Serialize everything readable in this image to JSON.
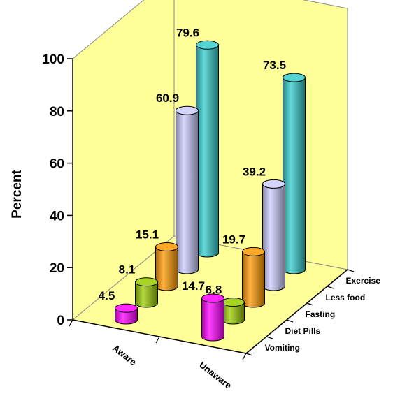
{
  "chart_data": {
    "type": "bar",
    "style": "3d-cylinder",
    "ylabel": "Percent",
    "ylim": [
      0,
      100
    ],
    "yticks": [
      0,
      20,
      40,
      60,
      80,
      100
    ],
    "categories": [
      "Aware",
      "Unaware"
    ],
    "series": [
      {
        "name": "Vomiting",
        "values": [
          4.5,
          14.7
        ],
        "color": "#ff00ff"
      },
      {
        "name": "Diet Pills",
        "values": [
          8.1,
          6.8
        ],
        "color": "#99cc00"
      },
      {
        "name": "Fasting",
        "values": [
          15.1,
          19.7
        ],
        "color": "#ff9900"
      },
      {
        "name": "Less food",
        "values": [
          60.9,
          39.2
        ],
        "color": "#ccccff"
      },
      {
        "name": "Exercise",
        "values": [
          79.6,
          73.5
        ],
        "color": "#33cccc"
      }
    ],
    "wall_color": "#ffff99",
    "grid": false
  }
}
